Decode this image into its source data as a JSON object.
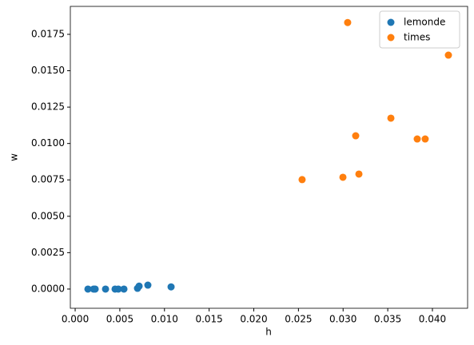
{
  "chart_data": {
    "type": "scatter",
    "xlabel": "h",
    "ylabel": "w",
    "series": [
      {
        "name": "lemonde",
        "color": "#1f77b4",
        "x": [
          0.00143,
          0.00206,
          0.00224,
          0.0034,
          0.00447,
          0.00483,
          0.00546,
          0.00698,
          0.00716,
          0.00814,
          0.01074
        ],
        "values": [
          0,
          0,
          0,
          0,
          0,
          0,
          0,
          5e-05,
          0.0002,
          0.00027,
          0.00015
        ]
      },
      {
        "name": "times",
        "color": "#ff7f0e",
        "x": [
          0.02541,
          0.02998,
          0.03051,
          0.03141,
          0.03177,
          0.03535,
          0.0383,
          0.03919,
          0.04179
        ],
        "values": [
          0.00752,
          0.00768,
          0.01831,
          0.01053,
          0.0079,
          0.01174,
          0.01031,
          0.01031,
          0.01607
        ]
      }
    ],
    "xlim": [
      -0.00054,
      0.04394
    ],
    "xticks": [
      {
        "value": 0,
        "label": "0.000"
      },
      {
        "value": 0.005,
        "label": "0.005"
      },
      {
        "value": 0.01,
        "label": "0.010"
      },
      {
        "value": 0.015,
        "label": "0.015"
      },
      {
        "value": 0.02,
        "label": "0.020"
      },
      {
        "value": 0.025,
        "label": "0.025"
      },
      {
        "value": 0.03,
        "label": "0.030"
      },
      {
        "value": 0.035,
        "label": "0.035"
      },
      {
        "value": 0.04,
        "label": "0.040"
      }
    ],
    "ylim": [
      -0.00132,
      0.01942
    ],
    "yticks": [
      {
        "value": 0,
        "label": "0.0000"
      },
      {
        "value": 0.0025,
        "label": "0.0025"
      },
      {
        "value": 0.005,
        "label": "0.0050"
      },
      {
        "value": 0.0075,
        "label": "0.0075"
      },
      {
        "value": 0.01,
        "label": "0.0100"
      },
      {
        "value": 0.0125,
        "label": "0.0125"
      },
      {
        "value": 0.015,
        "label": "0.0150"
      },
      {
        "value": 0.0175,
        "label": "0.0175"
      }
    ],
    "legend": "upper right",
    "grid": false
  }
}
